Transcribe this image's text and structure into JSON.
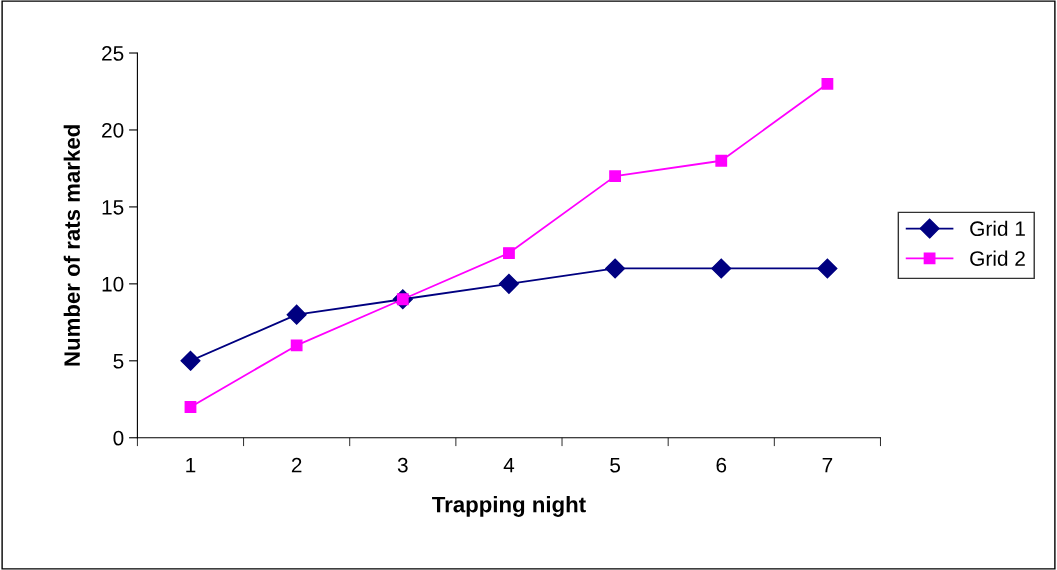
{
  "chart_data": {
    "type": "line",
    "xlabel": "Trapping night",
    "ylabel": "Number of rats marked",
    "categories": [
      "1",
      "2",
      "3",
      "4",
      "5",
      "6",
      "7"
    ],
    "series": [
      {
        "name": "Grid 1",
        "color": "#000080",
        "marker": "diamond",
        "values": [
          5,
          8,
          9,
          10,
          11,
          11,
          11
        ]
      },
      {
        "name": "Grid 2",
        "color": "#ff00ff",
        "marker": "square",
        "values": [
          2,
          6,
          9,
          12,
          17,
          18,
          23
        ]
      }
    ],
    "ylim": [
      0,
      25
    ],
    "yticks": [
      0,
      5,
      10,
      15,
      20,
      25
    ],
    "grid": false,
    "legend": "right",
    "line_style": "solid"
  }
}
